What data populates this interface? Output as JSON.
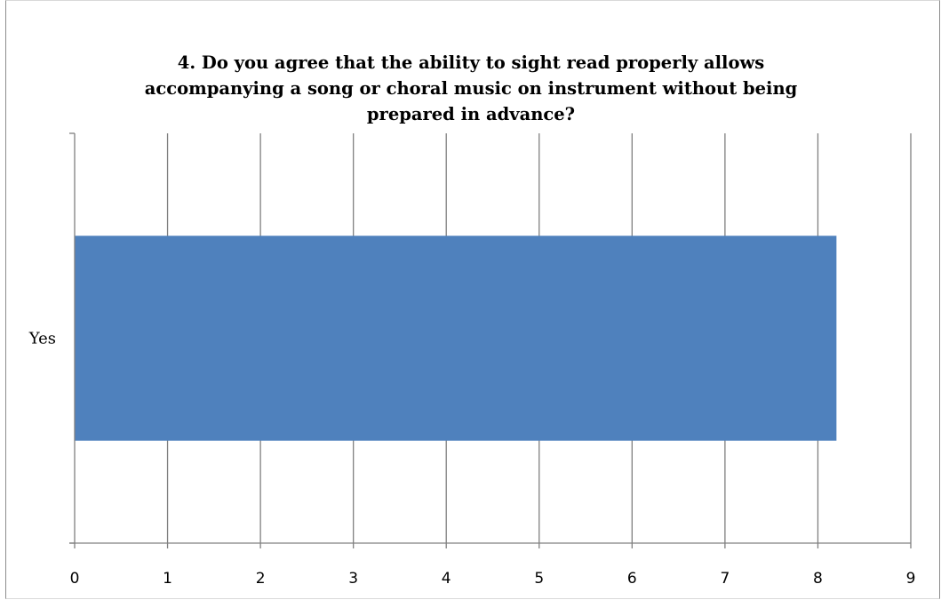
{
  "chart_data": {
    "type": "bar",
    "orientation": "horizontal",
    "title": "4. Do you agree that the ability to sight read    properly   allows\naccompanying a song or   choral   music on instrument without being\nprepared in advance?",
    "categories": [
      "Yes"
    ],
    "values": [
      8.2
    ],
    "xlim": [
      0,
      9
    ],
    "xticks": [
      "0",
      "1",
      "2",
      "3",
      "4",
      "5",
      "6",
      "7",
      "8",
      "9"
    ],
    "grid": true,
    "legend": "none",
    "bar_color": "#4f81bd",
    "grid_color": "#808080"
  }
}
